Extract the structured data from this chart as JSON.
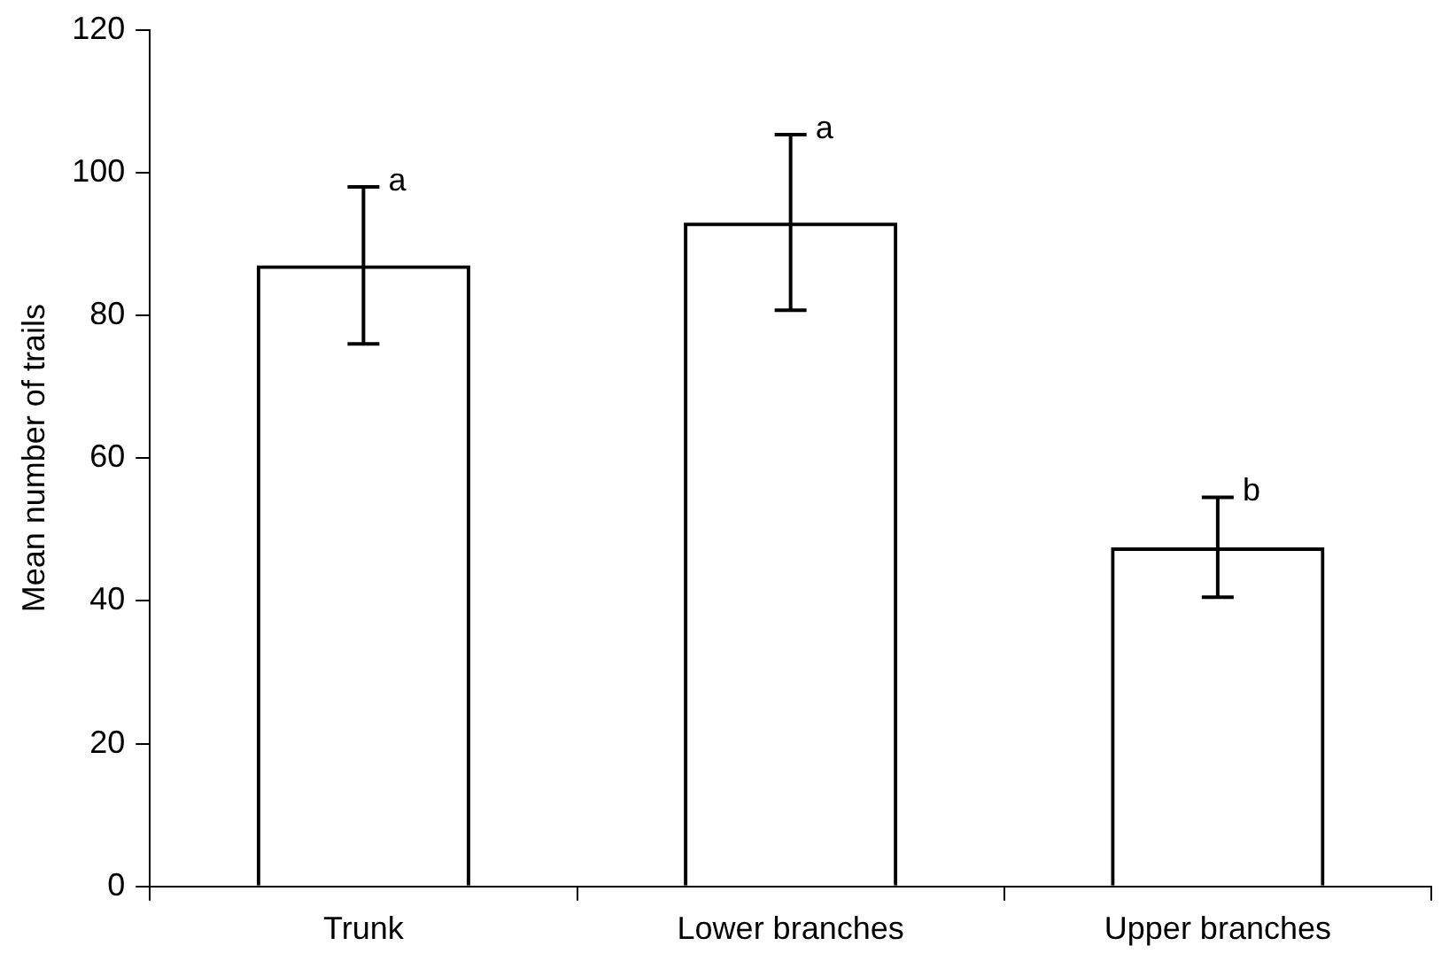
{
  "chart_data": {
    "type": "bar",
    "ylabel": "Mean number of trails",
    "categories": [
      "Trunk",
      "Lower branches",
      "Upper branches"
    ],
    "values": [
      87,
      93,
      47.5
    ],
    "errors": [
      11,
      12.3,
      7
    ],
    "color": "#000000",
    "ylim": [
      0,
      120
    ],
    "yticks": [
      0,
      20,
      40,
      60,
      80,
      100,
      120
    ],
    "grid": false,
    "legend": false,
    "annotations": [
      {
        "text": "a",
        "x": "Trunk",
        "y": 98
      },
      {
        "text": "a",
        "x": "Lower branches",
        "y": 105.3
      },
      {
        "text": "b",
        "x": "Upper branches",
        "y": 54.5
      }
    ]
  }
}
